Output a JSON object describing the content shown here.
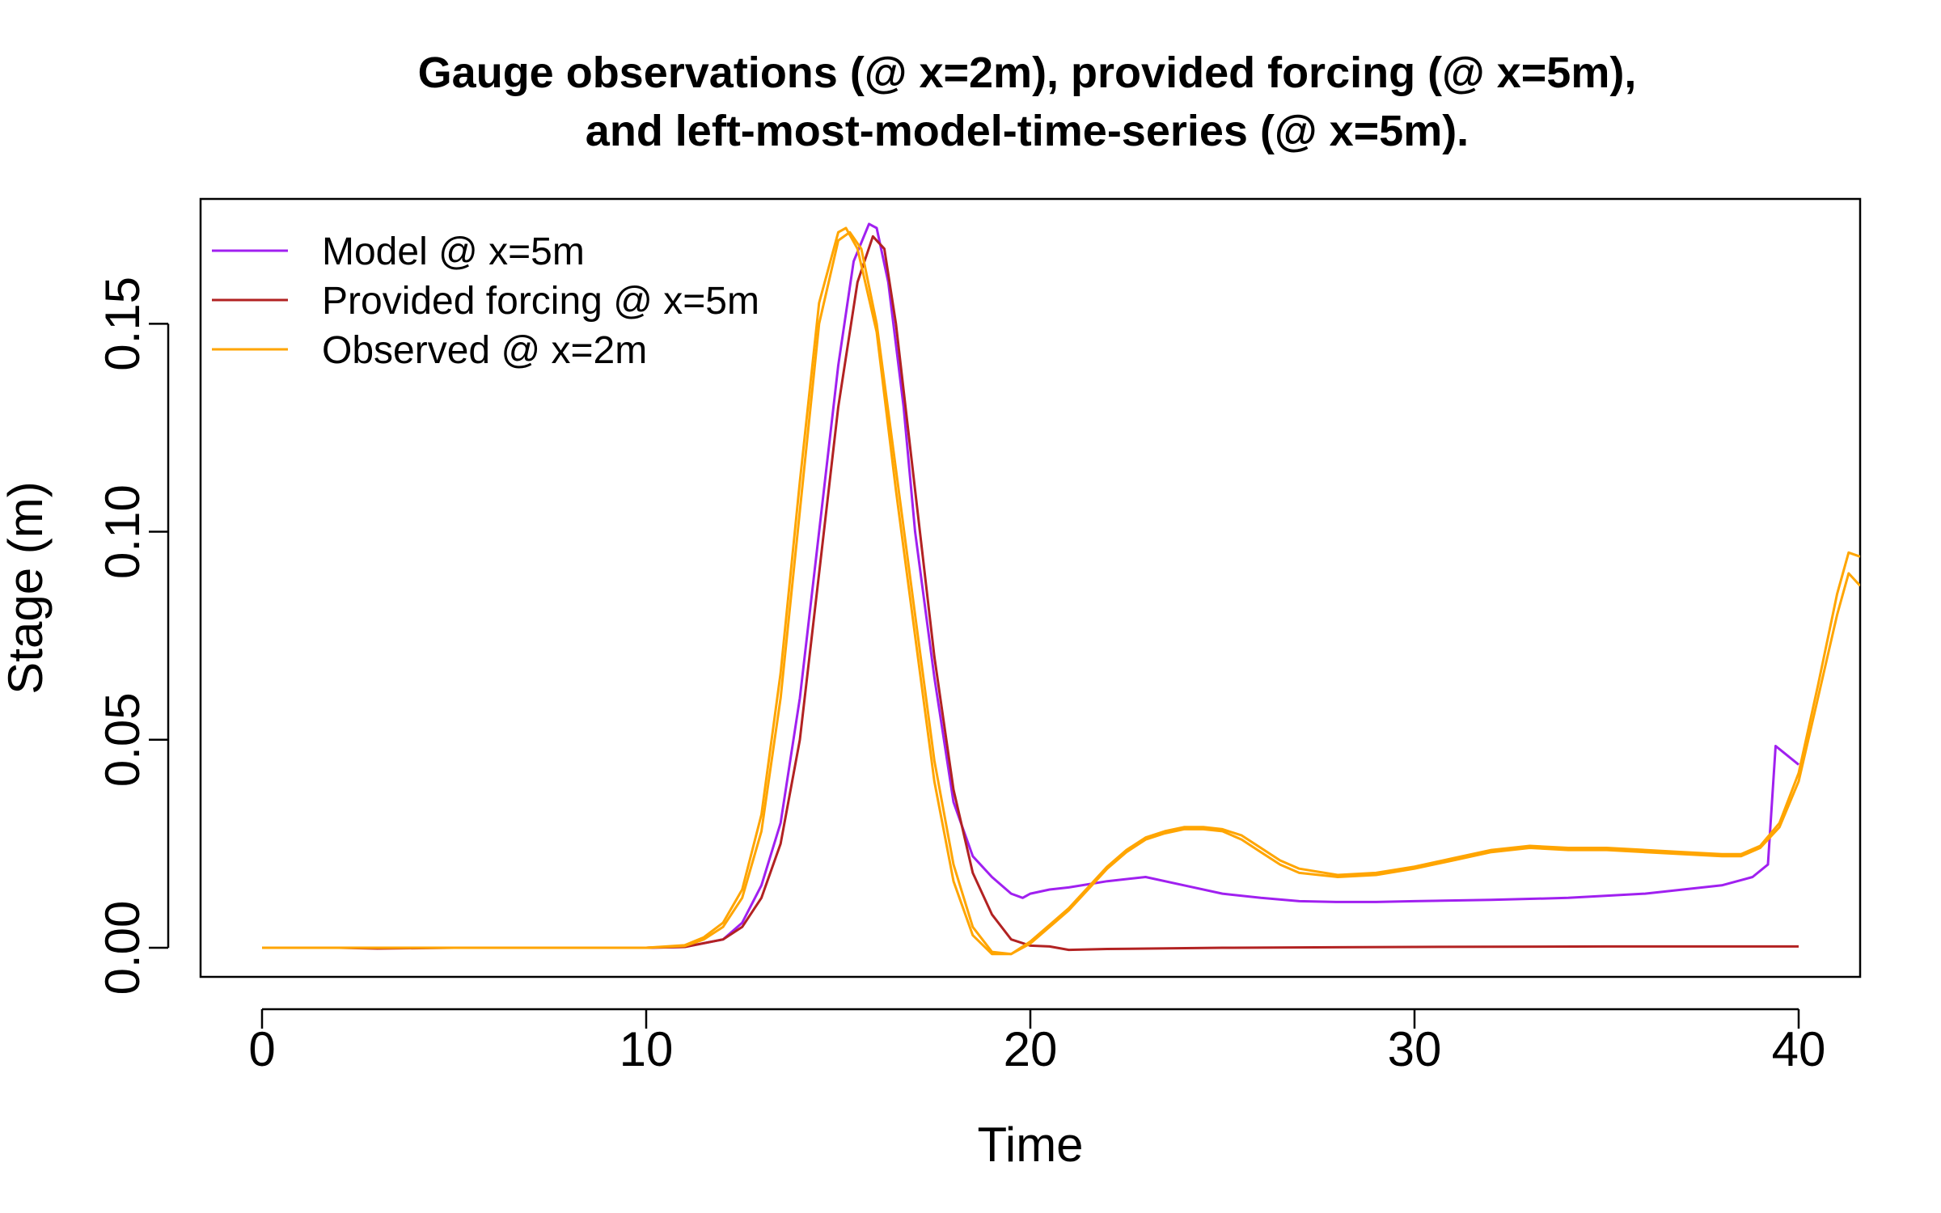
{
  "chart_data": {
    "type": "line",
    "title": "Gauge observations (@ x=2m), provided forcing (@ x=5m),",
    "subtitle": "and left-most-model-time-series (@ x=5m).",
    "xlabel": "Time",
    "ylabel": "Stage (m)",
    "xlim": [
      -1.6,
      41.6
    ],
    "ylim": [
      -0.007,
      0.18
    ],
    "x_ticks": [
      0,
      10,
      20,
      30,
      40
    ],
    "x_tick_labels": [
      "0",
      "10",
      "20",
      "30",
      "40"
    ],
    "y_ticks": [
      0.0,
      0.05,
      0.1,
      0.15
    ],
    "y_tick_labels": [
      "0.00",
      "0.05",
      "0.10",
      "0.15"
    ],
    "grid": false,
    "legend_position": "top-left",
    "series": [
      {
        "name": "Model @ x=5m",
        "color": "#A020F0",
        "x": [
          0,
          5,
          10,
          11,
          12,
          12.5,
          13,
          13.5,
          14,
          14.5,
          15,
          15.4,
          15.8,
          16.0,
          16.3,
          16.7,
          17.0,
          17.5,
          18.0,
          18.5,
          19.0,
          19.5,
          19.8,
          20.0,
          20.5,
          21,
          22,
          23,
          24,
          25,
          26,
          27,
          28,
          29,
          30,
          32,
          34,
          36,
          38,
          38.8,
          39.2,
          39.4,
          39.6,
          40.0
        ],
        "y": [
          0.0,
          0.0,
          0.0,
          0.0002,
          0.002,
          0.006,
          0.015,
          0.03,
          0.06,
          0.1,
          0.14,
          0.165,
          0.174,
          0.173,
          0.16,
          0.13,
          0.1,
          0.065,
          0.035,
          0.022,
          0.017,
          0.013,
          0.012,
          0.013,
          0.014,
          0.0145,
          0.016,
          0.017,
          0.015,
          0.013,
          0.012,
          0.0112,
          0.011,
          0.011,
          0.0112,
          0.0115,
          0.012,
          0.013,
          0.015,
          0.017,
          0.02,
          0.0485,
          0.047,
          0.044
        ]
      },
      {
        "name": "Provided forcing @ x=5m",
        "color": "#B22222",
        "x": [
          0,
          2,
          3,
          5,
          10,
          11,
          12,
          12.5,
          13,
          13.5,
          14,
          14.5,
          15,
          15.5,
          15.9,
          16.2,
          16.5,
          17,
          17.5,
          18,
          18.5,
          19,
          19.5,
          20,
          20.5,
          21,
          22,
          25,
          30,
          35,
          40
        ],
        "y": [
          0.0,
          0.0,
          -0.0002,
          0.0,
          0.0,
          0.0002,
          0.002,
          0.005,
          0.012,
          0.025,
          0.05,
          0.09,
          0.13,
          0.16,
          0.171,
          0.168,
          0.15,
          0.11,
          0.07,
          0.038,
          0.018,
          0.008,
          0.002,
          0.0005,
          0.0003,
          -0.0005,
          -0.0003,
          0.0,
          0.0002,
          0.0003,
          0.0003
        ]
      },
      {
        "name": "Observed @ x=2m",
        "color": "#FFA500",
        "x": [
          0,
          5,
          10,
          11,
          11.5,
          12,
          12.5,
          13,
          13.5,
          14,
          14.5,
          15,
          15.3,
          15.6,
          16,
          16.5,
          17,
          17.5,
          18,
          18.5,
          19,
          19.5,
          20,
          20.5,
          21,
          21.5,
          22,
          22.5,
          23,
          23.5,
          24,
          24.5,
          25,
          25.5,
          26,
          26.5,
          27,
          28,
          29,
          30,
          31,
          32,
          33,
          34,
          35,
          36,
          37,
          38,
          38.5,
          39,
          39.5,
          40,
          40.5,
          41,
          41.3,
          41.6
        ],
        "y": [
          0.0,
          0.0,
          0.0,
          0.0004,
          0.002,
          0.005,
          0.012,
          0.028,
          0.06,
          0.105,
          0.15,
          0.17,
          0.172,
          0.168,
          0.15,
          0.115,
          0.08,
          0.045,
          0.02,
          0.005,
          -0.001,
          -0.0015,
          0.001,
          0.005,
          0.009,
          0.014,
          0.019,
          0.023,
          0.026,
          0.0275,
          0.0285,
          0.0285,
          0.028,
          0.026,
          0.023,
          0.02,
          0.018,
          0.017,
          0.0175,
          0.019,
          0.021,
          0.023,
          0.024,
          0.0235,
          0.0235,
          0.023,
          0.0225,
          0.022,
          0.022,
          0.024,
          0.029,
          0.04,
          0.06,
          0.08,
          0.09,
          0.087
        ]
      },
      {
        "name": "",
        "color": "#FFA500",
        "x": [
          0,
          5,
          10,
          11,
          11.5,
          12,
          12.5,
          13,
          13.5,
          14,
          14.5,
          15,
          15.2,
          15.5,
          16,
          16.5,
          17,
          17.5,
          18,
          18.5,
          19,
          19.5,
          20,
          20.5,
          21,
          21.5,
          22,
          22.5,
          23,
          23.5,
          24,
          24.5,
          25,
          25.5,
          26,
          26.5,
          27,
          28,
          29,
          30,
          31,
          32,
          33,
          34,
          35,
          36,
          37,
          38,
          38.5,
          39,
          39.5,
          40,
          40.5,
          41,
          41.3,
          41.6
        ],
        "y": [
          0.0,
          0.0,
          0.0,
          0.0006,
          0.0025,
          0.006,
          0.014,
          0.032,
          0.066,
          0.112,
          0.155,
          0.172,
          0.173,
          0.168,
          0.148,
          0.11,
          0.075,
          0.04,
          0.016,
          0.003,
          -0.0015,
          -0.0015,
          0.0015,
          0.0055,
          0.0095,
          0.0145,
          0.0195,
          0.0235,
          0.0265,
          0.028,
          0.029,
          0.029,
          0.0285,
          0.027,
          0.024,
          0.021,
          0.019,
          0.0175,
          0.018,
          0.0195,
          0.0215,
          0.0235,
          0.0245,
          0.024,
          0.024,
          0.0235,
          0.023,
          0.0225,
          0.0225,
          0.0245,
          0.03,
          0.042,
          0.063,
          0.085,
          0.095,
          0.094
        ]
      }
    ]
  }
}
